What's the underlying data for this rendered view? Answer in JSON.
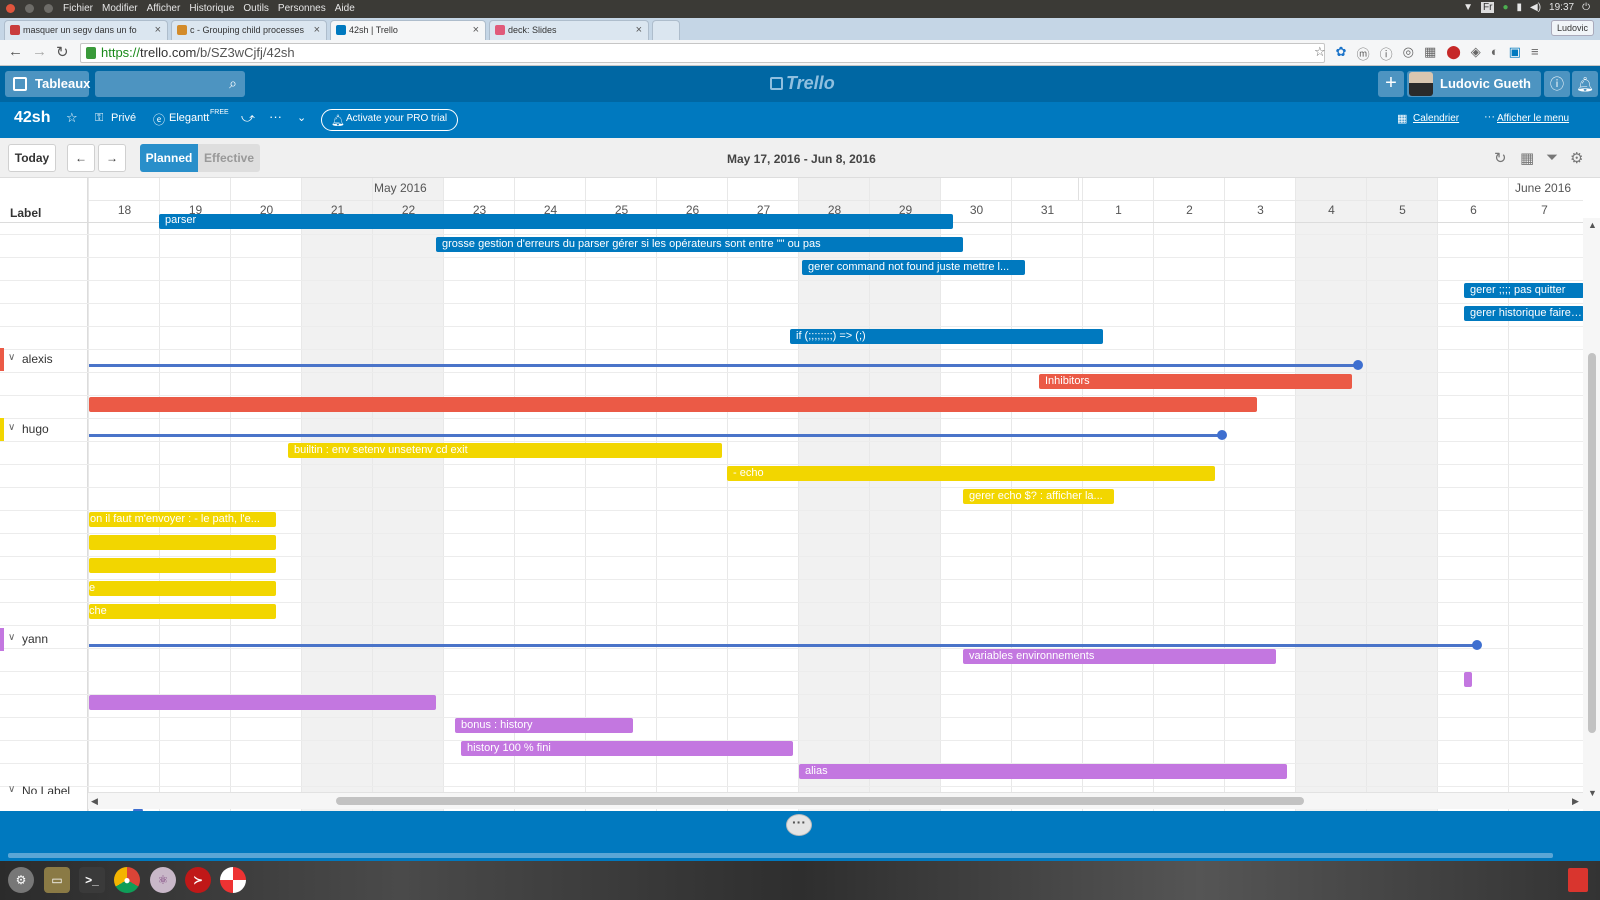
{
  "os": {
    "menu": [
      "Fichier",
      "Modifier",
      "Afficher",
      "Historique",
      "Outils",
      "Personnes",
      "Aide"
    ],
    "clock": "19:37",
    "user": "Ludovic",
    "tray_icons": [
      "wifi-icon",
      "keyboard-icon",
      "bluetooth-icon",
      "battery-icon",
      "volume-icon",
      "power-icon"
    ]
  },
  "browser": {
    "tabs": [
      {
        "title": "masquer un segv dans un fo",
        "icon_color": "#c93c3c"
      },
      {
        "title": "c - Grouping child processes",
        "icon_color": "#d38b2a"
      },
      {
        "title": "42sh | Trello",
        "icon_color": "#0079bf"
      },
      {
        "title": "deck: Slides",
        "icon_color": "#e05a7a"
      }
    ],
    "url_https": "https://",
    "url_host": "trello.com",
    "url_path": "/b/SZ3wCjfj/42sh"
  },
  "trello": {
    "boards_label": "Tableaux",
    "logo": "Trello",
    "member_name": "Ludovic Gueth"
  },
  "board": {
    "name": "42sh",
    "visibility": "Privé",
    "powerup": "Elegantt",
    "powerup_badge": "FREE",
    "pro_trial": "Activate your PRO trial",
    "calendar_link": "Calendrier",
    "menu_link": "Afficher le menu"
  },
  "toolbar": {
    "today": "Today",
    "prev": "←",
    "next": "→",
    "planned": "Planned",
    "effective": "Effective",
    "date_range": "May 17, 2016 - Jun 8, 2016"
  },
  "gantt": {
    "label_header": "Label",
    "months": [
      {
        "name": "May 2016"
      },
      {
        "name": "June 2016"
      }
    ],
    "days": [
      "18",
      "19",
      "20",
      "21",
      "22",
      "23",
      "24",
      "25",
      "26",
      "27",
      "28",
      "29",
      "30",
      "31",
      "1",
      "2",
      "3",
      "4",
      "5",
      "6",
      "7"
    ],
    "weekend_days": [
      "21",
      "22",
      "28",
      "29",
      "4",
      "5"
    ],
    "groups": [
      {
        "name": "alexis",
        "color": "#eb5a46"
      },
      {
        "name": "hugo",
        "color": "#f2d600"
      },
      {
        "name": "yann",
        "color": "#c377e0"
      },
      {
        "name": "No Label",
        "color": "#b0b0b0"
      }
    ],
    "tasks": [
      {
        "title": "parser",
        "color": "blue"
      },
      {
        "title": "grosse gestion d'erreurs du parser gérer si les opérateurs sont entre \"\" ou pas",
        "color": "blue"
      },
      {
        "title": "gerer command not found juste mettre l...",
        "color": "blue"
      },
      {
        "title": "gerer ;;;; pas quitter",
        "color": "blue"
      },
      {
        "title": "gerer historique faire pa",
        "color": "blue"
      },
      {
        "title": "if (;;;;;;;;) => (;)",
        "color": "blue"
      },
      {
        "title": "Inhibitors",
        "color": "red"
      },
      {
        "title": "",
        "color": "red"
      },
      {
        "title": "builtin : env setenv unsetenv cd exit",
        "color": "yellow"
      },
      {
        "title": "- echo",
        "color": "yellow"
      },
      {
        "title": "gerer echo $? : afficher la...",
        "color": "yellow"
      },
      {
        "title": "on il faut m'envoyer : - le path, l'e...",
        "color": "yellow"
      },
      {
        "title": "",
        "color": "yellow"
      },
      {
        "title": "",
        "color": "yellow"
      },
      {
        "title": "e",
        "color": "yellow"
      },
      {
        "title": "che",
        "color": "yellow"
      },
      {
        "title": "variables environnements",
        "color": "purple"
      },
      {
        "title": "",
        "color": "purple"
      },
      {
        "title": "",
        "color": "purple"
      },
      {
        "title": "bonus : history",
        "color": "purple"
      },
      {
        "title": "history 100 % fini",
        "color": "purple"
      },
      {
        "title": "alias",
        "color": "purple"
      }
    ]
  }
}
